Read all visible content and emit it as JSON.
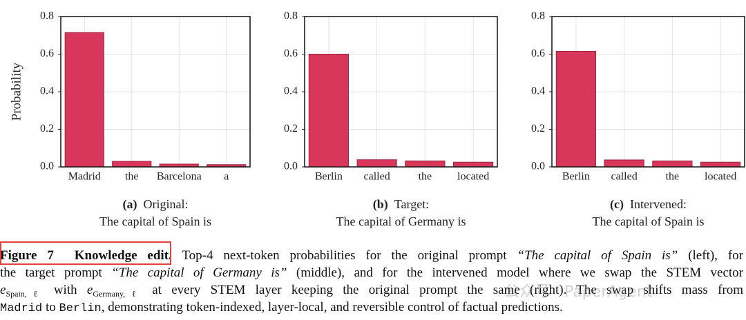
{
  "chart_data": [
    {
      "type": "bar",
      "tag": "(a)",
      "subtitle": "Original:",
      "prompt": "The capital of Spain is",
      "ylabel": "Probability",
      "categories": [
        "Madrid",
        "the",
        "Barcelona",
        "a"
      ],
      "values": [
        0.715,
        0.03,
        0.015,
        0.012
      ],
      "color": "#d9365c",
      "ylim": [
        0,
        0.8
      ],
      "yticks": [
        {
          "value": 0,
          "label": "0.0"
        },
        0.2,
        0.4,
        0.6,
        0.8
      ],
      "grid": true
    },
    {
      "type": "bar",
      "tag": "(b)",
      "subtitle": "Target:",
      "prompt": "The capital of Germany is",
      "categories": [
        "Berlin",
        "called",
        "the",
        "located"
      ],
      "values": [
        0.6,
        0.038,
        0.032,
        0.025
      ],
      "color": "#d9365c",
      "ylim": [
        0,
        0.8
      ],
      "yticks": [
        {
          "value": 0,
          "label": "0.0"
        },
        0.2,
        0.4,
        0.6,
        0.8
      ],
      "grid": true
    },
    {
      "type": "bar",
      "tag": "(c)",
      "subtitle": "Intervened:",
      "prompt": "The capital of Spain is",
      "categories": [
        "Berlin",
        "called",
        "the",
        "located"
      ],
      "values": [
        0.615,
        0.037,
        0.032,
        0.025
      ],
      "color": "#d9365c",
      "ylim": [
        0,
        0.8
      ],
      "yticks": [
        {
          "value": 0,
          "label": "0.0"
        },
        0.2,
        0.4,
        0.6,
        0.8
      ],
      "grid": true
    }
  ],
  "caption": {
    "lines": [
      [
        {
          "text": "Figure 7  Knowledge edit.",
          "style": "bold"
        },
        {
          "text": " Top-4 next-token probabilities for the original prompt ",
          "style": "normal"
        },
        {
          "text": "“The capital of Spain is”",
          "style": "italic"
        },
        {
          "text": " (left), for",
          "style": "normal"
        }
      ],
      [
        {
          "text": "the target prompt ",
          "style": "normal"
        },
        {
          "text": "“The capital of Germany is”",
          "style": "italic"
        },
        {
          "text": " (middle), and for the intervened model where we swap the STEM vector",
          "style": "normal"
        }
      ],
      [
        {
          "text": "e",
          "style": "italic"
        },
        {
          "text": "Spain,ℓ",
          "style": "sub"
        },
        {
          "text": " with ",
          "style": "normal"
        },
        {
          "text": "e",
          "style": "italic"
        },
        {
          "text": "Germany,ℓ",
          "style": "sub"
        },
        {
          "text": " at every STEM layer keeping the original prompt the same (right). The swap shifts mass from",
          "style": "normal"
        }
      ],
      [
        {
          "text": "Madrid",
          "style": "mono"
        },
        {
          "text": " to ",
          "style": "normal"
        },
        {
          "text": "Berlin",
          "style": "mono"
        },
        {
          "text": ", demonstrating token-indexed, layer-local, and reversible control of factual predictions.",
          "style": "normal"
        }
      ]
    ]
  },
  "watermark": "公众号 · PaperAgent"
}
